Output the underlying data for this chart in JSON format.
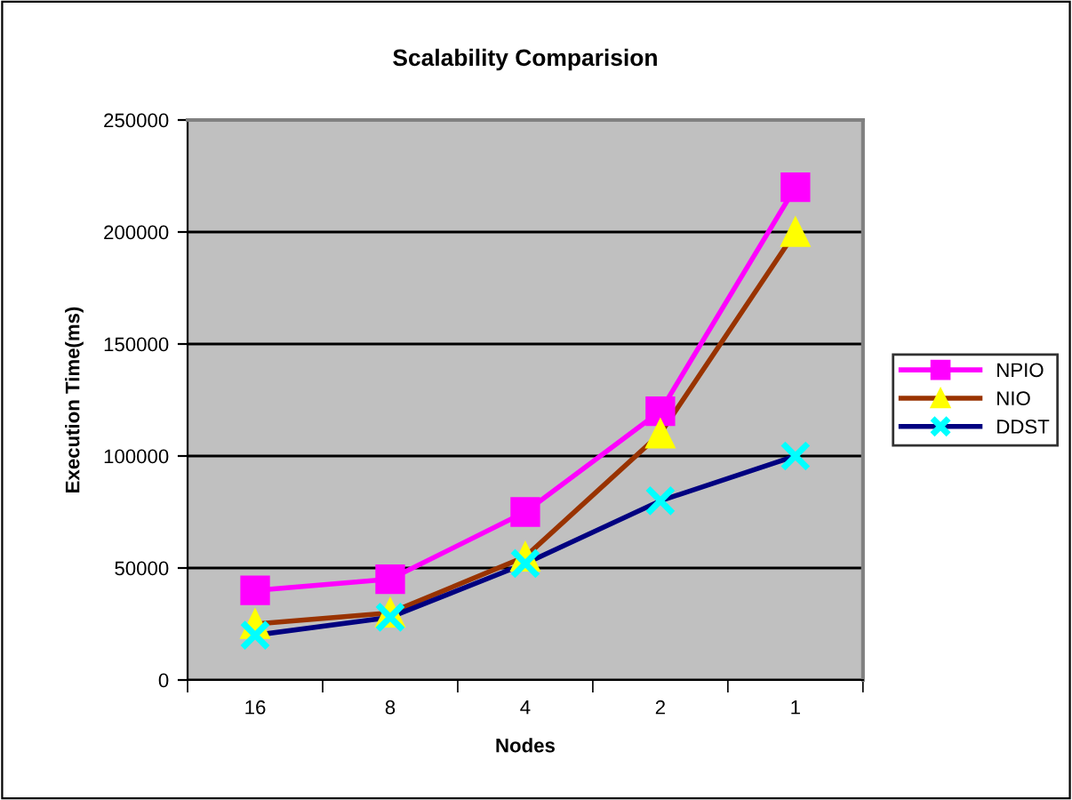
{
  "chart_data": {
    "type": "line",
    "title": "Scalability Comparision",
    "xlabel": "Nodes",
    "ylabel": "Execution Time(ms)",
    "categories": [
      "16",
      "8",
      "4",
      "2",
      "1"
    ],
    "series": [
      {
        "name": "NPIO",
        "color": "#ff00ff",
        "marker": "square",
        "colors": [
          "#ff00ff",
          "#ff00ff",
          "#ff00ff",
          "#ff00ff",
          "#ff00ff"
        ],
        "values": [
          40000,
          45000,
          75000,
          120000,
          220000
        ]
      },
      {
        "name": "NIO",
        "color": "#993300",
        "marker": "triangle",
        "colors": [
          "#ffff00",
          "#ffff00",
          "#ffff00",
          "#ffff00",
          "#ffff00"
        ],
        "values": [
          25000,
          30000,
          55000,
          110000,
          200000
        ]
      },
      {
        "name": "DDST",
        "color": "#000080",
        "marker": "cross",
        "colors": [
          "#00ffff",
          "#00ffff",
          "#00ffff",
          "#00ffff",
          "#00ffff"
        ],
        "values": [
          20000,
          28000,
          52000,
          80000,
          100000
        ]
      }
    ],
    "ylim": [
      0,
      250000
    ],
    "yticks": [
      0,
      50000,
      100000,
      150000,
      200000,
      250000
    ],
    "grid": "y",
    "legend": "right",
    "line_style": "solid"
  }
}
